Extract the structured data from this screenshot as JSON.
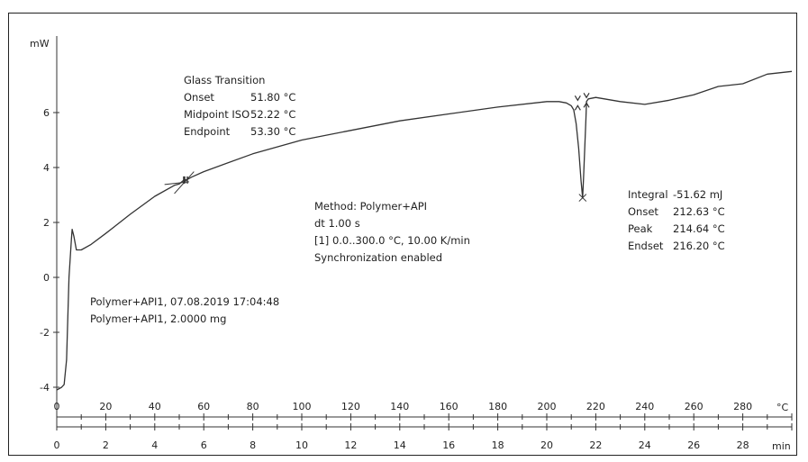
{
  "chart_data": {
    "type": "line",
    "y_unit": "mW",
    "x_unit_temp": "°C",
    "x_unit_time": "min",
    "y_ticks": [
      "6",
      "4",
      "2",
      "0",
      "-2",
      "-4"
    ],
    "y_tick_values": [
      6,
      4,
      2,
      0,
      -2,
      -4
    ],
    "temp_ticks": [
      "0",
      "20",
      "40",
      "60",
      "80",
      "100",
      "120",
      "140",
      "160",
      "180",
      "200",
      "220",
      "240",
      "260",
      "280"
    ],
    "time_ticks": [
      "0",
      "2",
      "4",
      "6",
      "8",
      "10",
      "12",
      "14",
      "16",
      "18",
      "20",
      "22",
      "24",
      "26",
      "28"
    ],
    "ylim": [
      -4.4,
      7.8
    ],
    "xlim_temp": [
      0,
      300
    ],
    "xlim_time": [
      0,
      30
    ],
    "series": [
      {
        "x": [
          0,
          2,
          3,
          4,
          5,
          6,
          6.3,
          7,
          8,
          10,
          14,
          20,
          30,
          40,
          48,
          50,
          52,
          53,
          55,
          60,
          80,
          100,
          120,
          140,
          160,
          180,
          200,
          205,
          208,
          210,
          211,
          212,
          213,
          214,
          214.64,
          215,
          216,
          216.2,
          217,
          220,
          230,
          240,
          250,
          260,
          270,
          280,
          290,
          300
        ],
        "y": [
          -4.1,
          -4.0,
          -3.9,
          -3.0,
          0.0,
          1.4,
          1.75,
          1.5,
          1.0,
          1.0,
          1.2,
          1.6,
          2.3,
          2.95,
          3.35,
          3.4,
          3.55,
          3.55,
          3.65,
          3.85,
          4.5,
          5.0,
          5.35,
          5.7,
          5.95,
          6.2,
          6.4,
          6.4,
          6.35,
          6.25,
          6.1,
          5.6,
          4.7,
          3.5,
          2.9,
          3.6,
          5.8,
          6.4,
          6.5,
          6.55,
          6.4,
          6.3,
          6.45,
          6.65,
          6.95,
          7.05,
          7.4,
          7.5
        ]
      }
    ],
    "annotations": {
      "glass_title": "Glass Transition",
      "glass_rows": [
        {
          "label": "Onset",
          "value": "51.80 °C"
        },
        {
          "label": "Midpoint ISO",
          "value": "52.22 °C"
        },
        {
          "label": "Endpoint",
          "value": "53.30 °C"
        }
      ],
      "method_lines": [
        "Method: Polymer+API",
        "dt 1.00 s",
        "[1] 0.0..300.0 °C, 10.00 K/min",
        "Synchronization enabled"
      ],
      "peak_rows": [
        {
          "label": "Integral",
          "value": "-51.62 mJ"
        },
        {
          "label": "Onset",
          "value": "212.63 °C"
        },
        {
          "label": "Peak",
          "value": "214.64 °C"
        },
        {
          "label": "Endset",
          "value": "216.20 °C"
        }
      ],
      "sample_lines": [
        "Polymer+API1, 07.08.2019 17:04:48",
        "Polymer+API1, 2.0000 mg"
      ]
    }
  }
}
